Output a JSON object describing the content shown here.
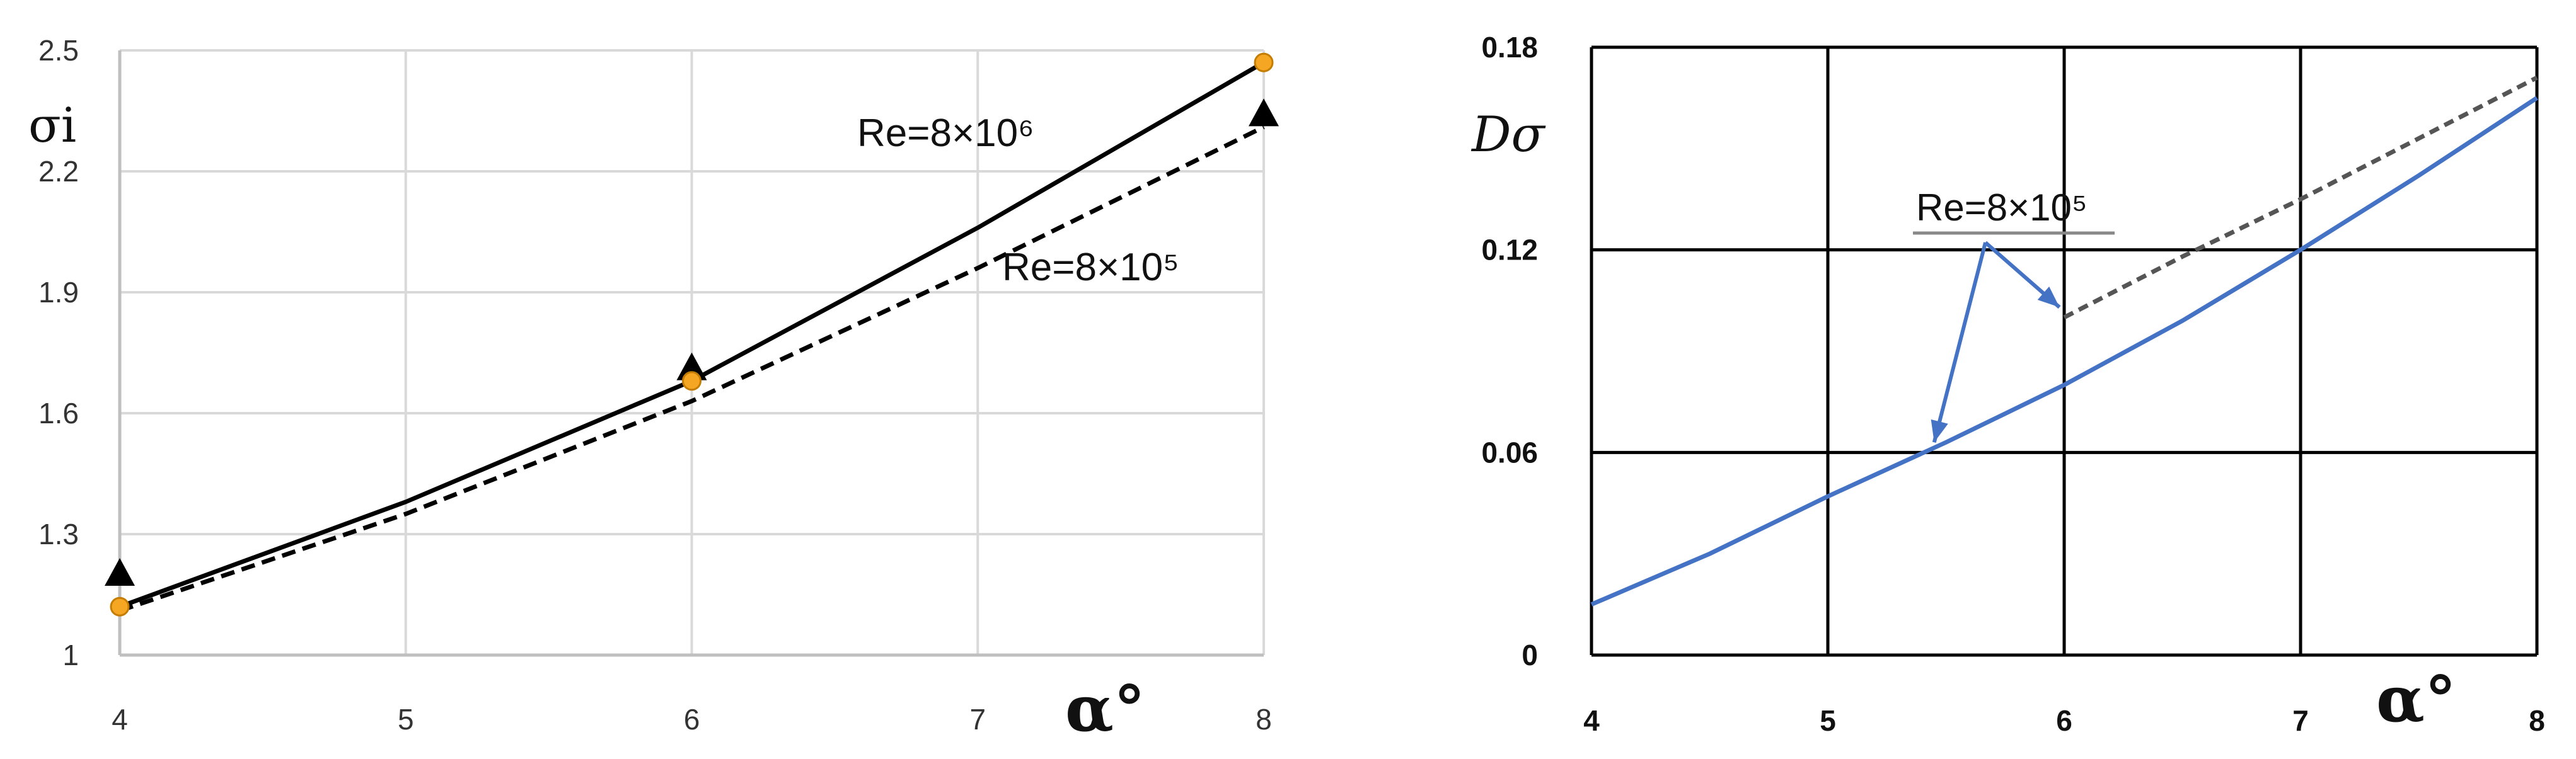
{
  "chart_data": [
    {
      "type": "line",
      "xlabel": "α°",
      "ylabel": "σi",
      "xlim": [
        4,
        8
      ],
      "ylim": [
        1,
        2.5
      ],
      "x_ticks": [
        "4",
        "5",
        "6",
        "7",
        "8"
      ],
      "y_ticks": [
        "1",
        "1.3",
        "1.6",
        "1.9",
        "2.2",
        "2.5"
      ],
      "grid": true,
      "series": [
        {
          "name": "Re=8×10⁶",
          "style": "solid",
          "color": "#000000",
          "x": [
            4,
            5,
            6,
            7,
            8
          ],
          "y": [
            1.12,
            1.38,
            1.68,
            2.06,
            2.47
          ]
        },
        {
          "name": "Re=8×10⁵",
          "style": "dashed",
          "color": "#000000",
          "x": [
            4,
            5,
            6,
            7,
            8
          ],
          "y": [
            1.11,
            1.35,
            1.63,
            1.96,
            2.31
          ]
        }
      ],
      "markers": [
        {
          "shape": "triangle",
          "color": "#000000",
          "x": [
            4,
            6,
            8
          ],
          "y": [
            1.2,
            1.71,
            2.34
          ]
        },
        {
          "shape": "circle",
          "color": "#f5a623",
          "x": [
            4,
            6,
            8
          ],
          "y": [
            1.12,
            1.68,
            2.47
          ]
        }
      ]
    },
    {
      "type": "line",
      "xlabel": "α°",
      "ylabel": "Dσ",
      "xlim": [
        4,
        8
      ],
      "ylim": [
        0,
        0.18
      ],
      "x_ticks": [
        "4",
        "5",
        "6",
        "7",
        "8"
      ],
      "y_ticks": [
        "0",
        "0.06",
        "0.12",
        "0.18"
      ],
      "grid": true,
      "annotation": "Re=8×10⁵",
      "series": [
        {
          "name": "solid",
          "style": "solid",
          "color": "#4472c4",
          "x": [
            4,
            4.5,
            5,
            5.5,
            6,
            6.5,
            7,
            7.5,
            8
          ],
          "y": [
            0.015,
            0.03,
            0.047,
            0.063,
            0.08,
            0.099,
            0.12,
            0.142,
            0.165
          ]
        },
        {
          "name": "dashed",
          "style": "dashed",
          "color": "#555555",
          "x": [
            6,
            6.5,
            7,
            7.5,
            8
          ],
          "y": [
            0.1,
            0.118,
            0.135,
            0.153,
            0.171
          ]
        }
      ]
    }
  ]
}
